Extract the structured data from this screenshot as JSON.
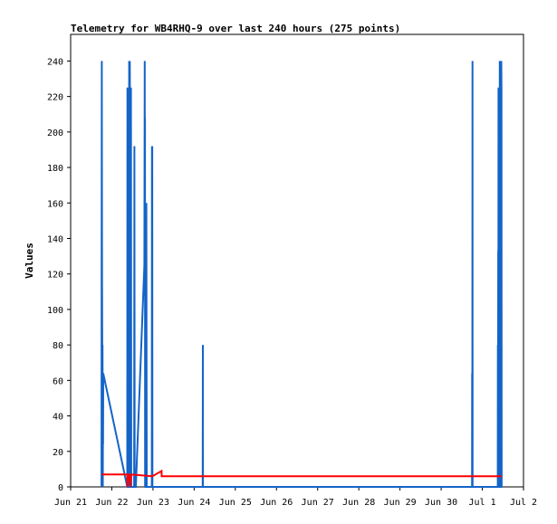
{
  "chart_data": {
    "type": "line",
    "title": "Telemetry for WB4RHQ-9 over last 240 hours (275 points)",
    "xlabel": "",
    "ylabel": "Values",
    "ylim": [
      0,
      255
    ],
    "yticks": [
      0,
      20,
      40,
      60,
      80,
      100,
      120,
      140,
      160,
      180,
      200,
      220,
      240
    ],
    "xlim": [
      "2023-06-21 00:00",
      "2023-07-02 00:00"
    ],
    "xticks": [
      "Jun 21",
      "Jun 22",
      "Jun 23",
      "Jun 24",
      "Jun 25",
      "Jun 26",
      "Jun 27",
      "Jun 28",
      "Jun 29",
      "Jun 30",
      "Jul 1",
      "Jul 2"
    ],
    "xtick_dates": [
      "2023-06-21",
      "2023-06-22",
      "2023-06-23",
      "2023-06-24",
      "2023-06-25",
      "2023-06-26",
      "2023-06-27",
      "2023-06-28",
      "2023-06-29",
      "2023-06-30",
      "2023-07-01",
      "2023-07-02"
    ],
    "grid": false,
    "legend": "none",
    "series": [
      {
        "color": "#1464c8",
        "points": [
          [
            "2023-06-21 18:00",
            0
          ],
          [
            "2023-06-21 18:05",
            120
          ],
          [
            "2023-06-21 18:10",
            240
          ],
          [
            "2023-06-21 18:15",
            144
          ],
          [
            "2023-06-21 18:20",
            112
          ],
          [
            "2023-06-21 18:25",
            80
          ],
          [
            "2023-06-21 18:30",
            48
          ],
          [
            "2023-06-21 18:35",
            80
          ],
          [
            "2023-06-21 18:40",
            40
          ],
          [
            "2023-06-21 18:45",
            0
          ],
          [
            "2023-06-21 18:50",
            48
          ],
          [
            "2023-06-21 18:55",
            24
          ],
          [
            "2023-06-21 19:00",
            64
          ],
          [
            "2023-06-22 09:00",
            0
          ],
          [
            "2023-06-22 09:05",
            225
          ],
          [
            "2023-06-22 09:10",
            112
          ],
          [
            "2023-06-22 09:15",
            0
          ],
          [
            "2023-06-22 10:00",
            0
          ],
          [
            "2023-06-22 10:05",
            240
          ],
          [
            "2023-06-22 10:10",
            80
          ],
          [
            "2023-06-22 10:15",
            240
          ],
          [
            "2023-06-22 10:20",
            80
          ],
          [
            "2023-06-22 10:25",
            0
          ],
          [
            "2023-06-22 10:30",
            240
          ],
          [
            "2023-06-22 10:35",
            216
          ],
          [
            "2023-06-22 10:40",
            64
          ],
          [
            "2023-06-22 10:45",
            168
          ],
          [
            "2023-06-22 10:50",
            0
          ],
          [
            "2023-06-22 11:00",
            0
          ],
          [
            "2023-06-22 11:10",
            225
          ],
          [
            "2023-06-22 11:20",
            0
          ],
          [
            "2023-06-22 13:00",
            0
          ],
          [
            "2023-06-22 13:10",
            192
          ],
          [
            "2023-06-22 13:20",
            0
          ],
          [
            "2023-06-22 14:00",
            0
          ],
          [
            "2023-06-22 19:00",
            125
          ],
          [
            "2023-06-22 19:10",
            240
          ],
          [
            "2023-06-22 19:15",
            184
          ],
          [
            "2023-06-22 19:20",
            208
          ],
          [
            "2023-06-22 19:25",
            0
          ],
          [
            "2023-06-22 19:30",
            64
          ],
          [
            "2023-06-22 19:35",
            0
          ],
          [
            "2023-06-22 20:00",
            0
          ],
          [
            "2023-06-22 20:10",
            160
          ],
          [
            "2023-06-22 20:20",
            0
          ],
          [
            "2023-06-22 21:00",
            0
          ],
          [
            "2023-06-22 21:30",
            0
          ],
          [
            "2023-06-22 23:20",
            0
          ],
          [
            "2023-06-22 23:25",
            192
          ],
          [
            "2023-06-22 23:30",
            0
          ],
          [
            "2023-06-22 23:35",
            192
          ],
          [
            "2023-06-22 23:40",
            0
          ],
          [
            "2023-06-24 05:00",
            0
          ],
          [
            "2023-06-24 05:05",
            80
          ],
          [
            "2023-06-24 05:10",
            0
          ],
          [
            "2023-06-30 18:00",
            0
          ],
          [
            "2023-06-30 18:05",
            64
          ],
          [
            "2023-06-30 18:10",
            0
          ],
          [
            "2023-06-30 18:15",
            240
          ],
          [
            "2023-06-30 18:20",
            0
          ],
          [
            "2023-07-01 09:00",
            0
          ],
          [
            "2023-07-01 09:05",
            80
          ],
          [
            "2023-07-01 09:10",
            24
          ],
          [
            "2023-07-01 09:15",
            133
          ],
          [
            "2023-07-01 09:20",
            0
          ],
          [
            "2023-07-01 09:25",
            225
          ],
          [
            "2023-07-01 09:30",
            112
          ],
          [
            "2023-07-01 09:35",
            0
          ],
          [
            "2023-07-01 10:00",
            0
          ],
          [
            "2023-07-01 10:05",
            80
          ],
          [
            "2023-07-01 10:10",
            240
          ],
          [
            "2023-07-01 10:15",
            0
          ],
          [
            "2023-07-01 11:00",
            0
          ],
          [
            "2023-07-01 11:05",
            240
          ],
          [
            "2023-07-01 11:10",
            225
          ],
          [
            "2023-07-01 11:15",
            0
          ]
        ]
      },
      {
        "color": "#ff0000",
        "points": [
          [
            "2023-06-21 18:00",
            7
          ],
          [
            "2023-06-22 09:00",
            7
          ],
          [
            "2023-06-22 09:10",
            0
          ],
          [
            "2023-06-22 09:20",
            7
          ],
          [
            "2023-06-22 10:00",
            7
          ],
          [
            "2023-06-22 10:50",
            0
          ],
          [
            "2023-06-22 11:20",
            7
          ],
          [
            "2023-06-22 23:40",
            6
          ],
          [
            "2023-06-23 05:00",
            9
          ],
          [
            "2023-06-23 05:05",
            6
          ],
          [
            "2023-07-01 11:15",
            6
          ]
        ]
      }
    ]
  }
}
